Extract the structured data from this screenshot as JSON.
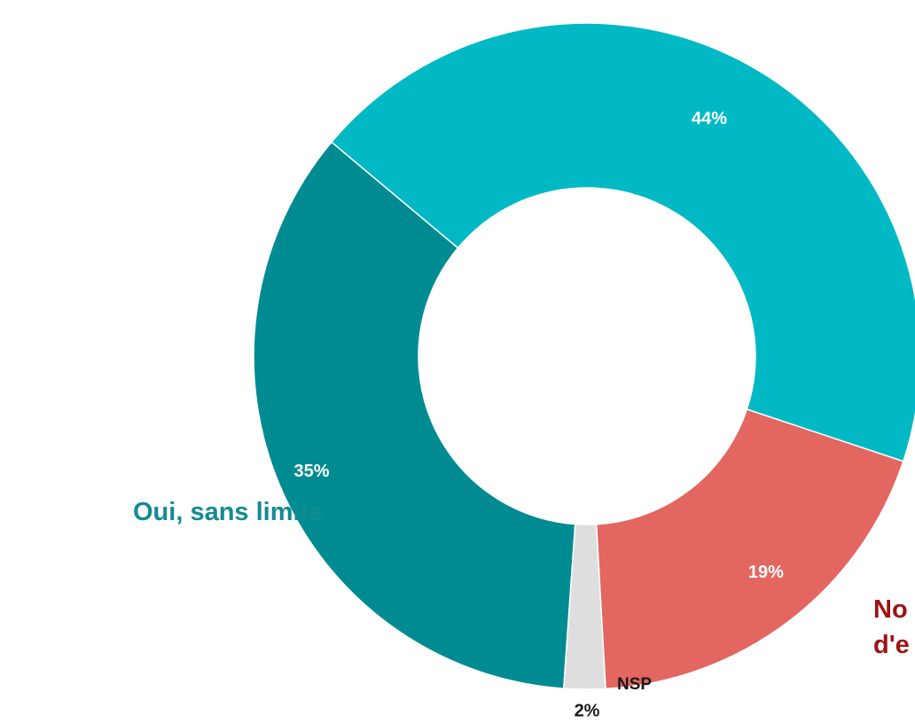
{
  "chart_data": {
    "type": "pie",
    "donut": true,
    "slices": [
      {
        "label": "Oui, sans limite",
        "value": 35,
        "value_label": "35%",
        "color": "#008b92",
        "text_color": "#ffffff"
      },
      {
        "label": "",
        "value": 44,
        "value_label": "44%",
        "color": "#00b9c4",
        "text_color": "#ffffff"
      },
      {
        "label": "Non, pas d'e",
        "value": 19,
        "value_label": "19%",
        "color": "#e36661",
        "text_color": "#ffffff"
      },
      {
        "label": "NSP",
        "value": 2,
        "value_label": "2%",
        "color": "#dedede",
        "text_color": "#1a1a1a"
      }
    ],
    "category_labels": {
      "oui": "Oui, sans limite",
      "non_line1": "No",
      "non_line2": "d'e",
      "nsp": "NSP"
    },
    "label_colors": {
      "oui": "#138a93",
      "non": "#9b1414",
      "nsp": "#1a1a1a"
    }
  }
}
